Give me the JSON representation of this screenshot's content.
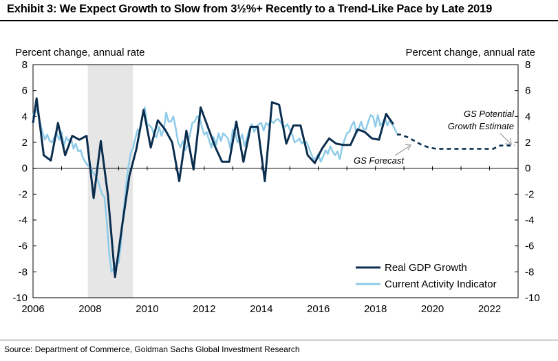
{
  "title": "Exhibit 3: We Expect Growth to Slow from 3½%+ Recently to a Trend-Like Pace by Late 2019",
  "source": "Source: Department of Commerce, Goldman Sachs Global Investment Research",
  "colors": {
    "gdp": "#0b2e4f",
    "cai": "#8ecbe8",
    "recession": "#e6e6e6",
    "annotation": "#999999"
  },
  "chart_data": {
    "type": "line",
    "ylabel_left": "Percent change, annual rate",
    "ylabel_right": "Percent change, annual rate",
    "ylim": [
      -10,
      8
    ],
    "xlim": [
      2006,
      2023
    ],
    "yticks": [
      "8",
      "6",
      "4",
      "2",
      "0",
      "-2",
      "-4",
      "-6",
      "-8",
      "-10"
    ],
    "yticks_right": [
      "8",
      "6",
      "4",
      "2",
      "0",
      "-2",
      "-4",
      "-6",
      "-8",
      "-10"
    ],
    "xticks": [
      "2006",
      "2008",
      "2010",
      "2012",
      "2014",
      "2016",
      "2018",
      "2020",
      "2022"
    ],
    "grid": false,
    "legend_position": "bottom-right",
    "shaded_period": [
      2007.92,
      2009.5
    ],
    "annotations": {
      "forecast": "GS Forecast",
      "potential_line1": "GS Potential",
      "potential_line2": "Growth Estimate"
    },
    "series": [
      {
        "name": "Real GDP Growth",
        "x": [
          2006.0,
          2006.125,
          2006.375,
          2006.625,
          2006.875,
          2007.125,
          2007.375,
          2007.625,
          2007.875,
          2008.125,
          2008.375,
          2008.625,
          2008.875,
          2009.125,
          2009.375,
          2009.625,
          2009.875,
          2010.125,
          2010.375,
          2010.625,
          2010.875,
          2011.125,
          2011.375,
          2011.625,
          2011.875,
          2012.125,
          2012.375,
          2012.625,
          2012.875,
          2013.125,
          2013.375,
          2013.625,
          2013.875,
          2014.125,
          2014.375,
          2014.625,
          2014.875,
          2015.125,
          2015.375,
          2015.625,
          2015.875,
          2016.125,
          2016.375,
          2016.625,
          2016.875,
          2017.125,
          2017.375,
          2017.625,
          2017.875,
          2018.125,
          2018.375,
          2018.625
        ],
        "values": [
          3.5,
          5.4,
          1.0,
          0.6,
          3.5,
          1.0,
          2.5,
          2.2,
          2.5,
          -2.3,
          2.1,
          -2.1,
          -8.4,
          -4.4,
          -0.6,
          1.5,
          4.5,
          1.6,
          3.7,
          3.0,
          2.0,
          -1.0,
          2.9,
          -0.1,
          4.7,
          3.2,
          1.7,
          0.5,
          0.5,
          3.6,
          0.5,
          3.2,
          3.2,
          -1.0,
          5.1,
          4.9,
          1.9,
          3.3,
          3.3,
          1.0,
          0.4,
          1.5,
          2.3,
          1.9,
          1.8,
          1.8,
          3.0,
          2.8,
          2.3,
          2.2,
          4.2,
          3.4
        ]
      },
      {
        "name": "Current Activity Indicator",
        "x": [
          2006.0,
          2006.083,
          2006.167,
          2006.25,
          2006.333,
          2006.417,
          2006.5,
          2006.583,
          2006.667,
          2006.75,
          2006.833,
          2006.917,
          2007.0,
          2007.083,
          2007.167,
          2007.25,
          2007.333,
          2007.417,
          2007.5,
          2007.583,
          2007.667,
          2007.75,
          2007.833,
          2007.917,
          2008.0,
          2008.083,
          2008.167,
          2008.25,
          2008.333,
          2008.417,
          2008.5,
          2008.583,
          2008.667,
          2008.75,
          2008.833,
          2008.917,
          2009.0,
          2009.083,
          2009.167,
          2009.25,
          2009.333,
          2009.417,
          2009.5,
          2009.583,
          2009.667,
          2009.75,
          2009.833,
          2009.917,
          2010.0,
          2010.083,
          2010.167,
          2010.25,
          2010.333,
          2010.417,
          2010.5,
          2010.583,
          2010.667,
          2010.75,
          2010.833,
          2010.917,
          2011.0,
          2011.083,
          2011.167,
          2011.25,
          2011.333,
          2011.417,
          2011.5,
          2011.583,
          2011.667,
          2011.75,
          2011.833,
          2011.917,
          2012.0,
          2012.083,
          2012.167,
          2012.25,
          2012.333,
          2012.417,
          2012.5,
          2012.583,
          2012.667,
          2012.75,
          2012.833,
          2012.917,
          2013.0,
          2013.083,
          2013.167,
          2013.25,
          2013.333,
          2013.417,
          2013.5,
          2013.583,
          2013.667,
          2013.75,
          2013.833,
          2013.917,
          2014.0,
          2014.083,
          2014.167,
          2014.25,
          2014.333,
          2014.417,
          2014.5,
          2014.583,
          2014.667,
          2014.75,
          2014.833,
          2014.917,
          2015.0,
          2015.083,
          2015.167,
          2015.25,
          2015.333,
          2015.417,
          2015.5,
          2015.583,
          2015.667,
          2015.75,
          2015.833,
          2015.917,
          2016.0,
          2016.083,
          2016.167,
          2016.25,
          2016.333,
          2016.417,
          2016.5,
          2016.583,
          2016.667,
          2016.75,
          2016.833,
          2016.917,
          2017.0,
          2017.083,
          2017.167,
          2017.25,
          2017.333,
          2017.417,
          2017.5,
          2017.583,
          2017.667,
          2017.75,
          2017.833,
          2017.917,
          2018.0,
          2018.083,
          2018.167,
          2018.25,
          2018.333,
          2018.417,
          2018.5,
          2018.583,
          2018.667,
          2018.75
        ],
        "values": [
          4.0,
          4.7,
          4.2,
          3.5,
          2.8,
          2.2,
          2.6,
          2.1,
          2.0,
          2.4,
          2.7,
          2.2,
          2.8,
          1.7,
          2.4,
          2.1,
          2.3,
          1.5,
          1.9,
          1.3,
          1.4,
          0.8,
          0.5,
          0.2,
          0.3,
          -0.3,
          -0.5,
          -0.8,
          -1.4,
          -2.0,
          -2.2,
          -4.0,
          -6.5,
          -8.0,
          -7.7,
          -7.3,
          -7.3,
          -5.8,
          -3.5,
          -1.6,
          0.0,
          1.1,
          1.5,
          2.3,
          3.0,
          2.9,
          4.0,
          4.7,
          3.4,
          3.3,
          3.1,
          2.5,
          2.4,
          3.2,
          2.5,
          3.0,
          4.3,
          3.6,
          3.6,
          4.0,
          3.1,
          2.0,
          1.6,
          2.1,
          1.4,
          1.8,
          2.6,
          3.5,
          3.6,
          4.0,
          4.0,
          3.2,
          2.6,
          2.8,
          2.2,
          1.6,
          2.4,
          1.8,
          2.7,
          2.1,
          2.7,
          2.5,
          2.3,
          1.5,
          3.0,
          2.8,
          2.0,
          2.2,
          2.6,
          1.7,
          2.4,
          3.0,
          3.4,
          2.8,
          3.2,
          3.4,
          3.5,
          2.9,
          3.5,
          3.3,
          3.7,
          3.5,
          3.7,
          3.8,
          3.6,
          3.3,
          3.2,
          3.4,
          3.0,
          2.6,
          2.0,
          2.1,
          2.3,
          1.9,
          2.1,
          2.0,
          1.6,
          1.1,
          0.7,
          0.8,
          1.1,
          0.5,
          0.9,
          1.4,
          1.1,
          1.7,
          1.3,
          1.0,
          1.3,
          0.7,
          1.6,
          2.2,
          2.7,
          2.8,
          3.3,
          3.6,
          2.7,
          3.1,
          3.6,
          3.0,
          3.0,
          3.6,
          4.1,
          4.0,
          3.2,
          4.1,
          3.3,
          3.5,
          3.9,
          3.3,
          3.7,
          3.4,
          3.1,
          2.7
        ]
      },
      {
        "name": "GS Forecast",
        "x": [
          2018.75,
          2018.875,
          2019.125,
          2019.375,
          2019.625,
          2019.875,
          2020.125,
          2020.375,
          2020.625,
          2020.875,
          2021.125,
          2021.375,
          2021.625,
          2021.875,
          2022.125,
          2022.375,
          2022.625,
          2022.875
        ],
        "values": [
          2.6,
          2.6,
          2.4,
          2.1,
          1.8,
          1.6,
          1.5,
          1.5,
          1.5,
          1.5,
          1.5,
          1.5,
          1.5,
          1.5,
          1.5,
          1.75,
          1.75,
          1.75
        ]
      }
    ]
  }
}
